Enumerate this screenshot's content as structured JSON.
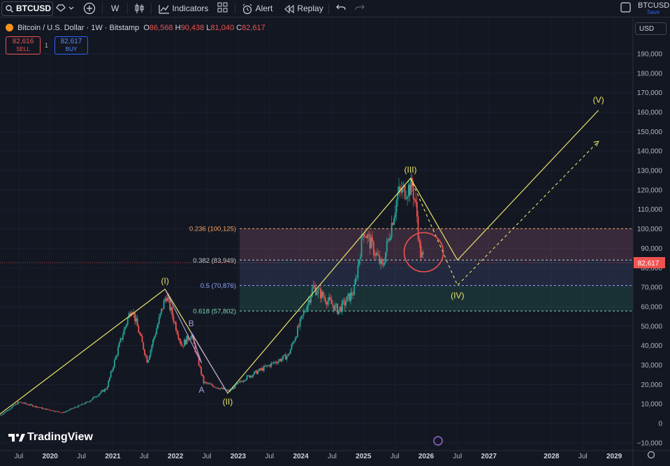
{
  "toolbar": {
    "symbol": "BTCUSD",
    "interval": "W",
    "indicators_label": "Indicators",
    "alert_label": "Alert",
    "replay_label": "Replay",
    "layout_name": "BTCUSD",
    "save_label": "Save"
  },
  "legend": {
    "title": "Bitcoin / U.S. Dollar · 1W · Bitstamp",
    "open_label": "O",
    "open": "86,568",
    "high_label": "H",
    "high": "90,438",
    "low_label": "L",
    "low": "81,040",
    "close_label": "C",
    "close": "82,617"
  },
  "trade": {
    "sell_price": "82,616",
    "sell_label": "SELL",
    "spread": "1",
    "buy_price": "82,617",
    "buy_label": "BUY"
  },
  "currency": "USD",
  "brand": "TradingView",
  "colors": {
    "up": "#26a69a",
    "down": "#ef5350",
    "wave": "#e8e36a",
    "bg": "#131722"
  },
  "chart_data": {
    "type": "candlestick",
    "y_ticks": [
      "190,000",
      "180,000",
      "170,000",
      "160,000",
      "150,000",
      "140,000",
      "130,000",
      "120,000",
      "110,000",
      "100,000",
      "90,000",
      "80,000",
      "70,000",
      "60,000",
      "50,000",
      "40,000",
      "30,000",
      "20,000",
      "10,000",
      "0",
      "−10,000"
    ],
    "x_ticks": [
      "Jul",
      "2020",
      "Jul",
      "2021",
      "Jul",
      "2022",
      "Jul",
      "2023",
      "Jul",
      "2024",
      "Jul",
      "2025",
      "Jul",
      "2026",
      "Jul",
      "2027",
      "2028",
      "Jul",
      "2029"
    ],
    "ylim": [
      -13000,
      196000
    ],
    "last_price_label": "82,617",
    "last_price": 82617,
    "fib_levels": [
      {
        "label": "0.236 (100,125)",
        "value": 100125,
        "color": "#f7a35c"
      },
      {
        "label": "0.382 (83,949)",
        "value": 83949,
        "color": "#c9c9c9"
      },
      {
        "label": "0.5 (70,876)",
        "value": 70876,
        "color": "#8fa6ff"
      },
      {
        "label": "0.618 (57,802)",
        "value": 57802,
        "color": "#7fd6b5"
      }
    ],
    "wave_labels": [
      {
        "label": "(I)",
        "date": "2021-11",
        "value": 69000
      },
      {
        "label": "(II)",
        "date": "2022-11",
        "value": 15500
      },
      {
        "label": "(III)",
        "date": "2025-10",
        "value": 126000
      },
      {
        "label": "(IV)",
        "date": "2026-07",
        "value": 70000
      },
      {
        "label": "(V)",
        "date": "2028-10",
        "value": 162000
      },
      {
        "label": "A",
        "date": "2022-06",
        "value": 18000
      },
      {
        "label": "B",
        "date": "2022-04",
        "value": 47000
      }
    ],
    "main_path": [
      {
        "date": "2019-03",
        "value": 4000
      },
      {
        "date": "2021-11",
        "value": 69000
      },
      {
        "date": "2022-11",
        "value": 15500
      },
      {
        "date": "2025-10",
        "value": 126000
      },
      {
        "date": "2026-07",
        "value": 84000
      },
      {
        "date": "2028-10",
        "value": 161000
      }
    ],
    "alt_path": [
      {
        "date": "2025-10",
        "value": 126000
      },
      {
        "date": "2026-07",
        "value": 71000
      },
      {
        "date": "2028-10",
        "value": 145000
      }
    ]
  }
}
